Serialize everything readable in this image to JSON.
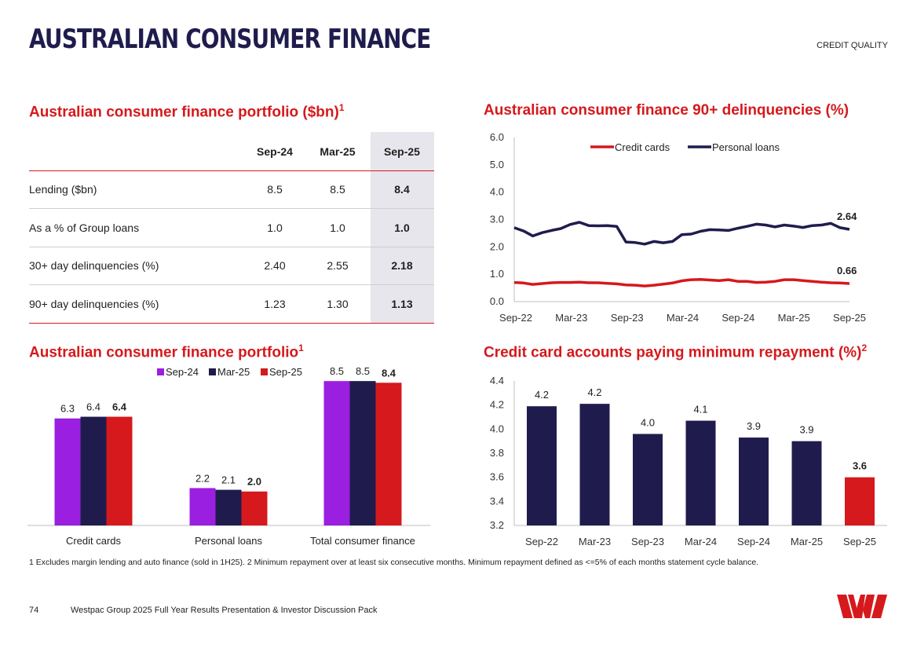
{
  "header": {
    "title": "AUSTRALIAN CONSUMER FINANCE",
    "section": "CREDIT QUALITY"
  },
  "portfolio_table": {
    "title": "Australian consumer finance portfolio ($bn)",
    "title_sup": "1",
    "columns": [
      "Sep-24",
      "Mar-25",
      "Sep-25"
    ],
    "rows": [
      {
        "label": "Lending ($bn)",
        "values": [
          "8.5",
          "8.5",
          "8.4"
        ]
      },
      {
        "label": "As a % of Group loans",
        "values": [
          "1.0",
          "1.0",
          "1.0"
        ]
      },
      {
        "label": "30+ day delinquencies (%)",
        "values": [
          "2.40",
          "2.55",
          "2.18"
        ]
      },
      {
        "label": "90+ day delinquencies (%)",
        "values": [
          "1.23",
          "1.30",
          "1.13"
        ]
      }
    ]
  },
  "chart_data": [
    {
      "id": "delinquencies",
      "type": "line",
      "title": "Australian consumer finance 90+ delinquencies (%)",
      "x_ticks": [
        "Sep-22",
        "Mar-23",
        "Sep-23",
        "Mar-24",
        "Sep-24",
        "Mar-25",
        "Sep-25"
      ],
      "ylim": [
        0,
        6
      ],
      "y_ticks": [
        "0.0",
        "1.0",
        "2.0",
        "3.0",
        "4.0",
        "5.0",
        "6.0"
      ],
      "series": [
        {
          "name": "Credit cards",
          "color": "#d5191c",
          "end_label": "0.66",
          "values": [
            0.7,
            0.68,
            0.63,
            0.66,
            0.69,
            0.7,
            0.7,
            0.71,
            0.69,
            0.69,
            0.67,
            0.65,
            0.61,
            0.6,
            0.57,
            0.6,
            0.64,
            0.68,
            0.76,
            0.8,
            0.81,
            0.79,
            0.77,
            0.8,
            0.74,
            0.74,
            0.7,
            0.71,
            0.74,
            0.8,
            0.8,
            0.77,
            0.74,
            0.71,
            0.69,
            0.68,
            0.66
          ]
        },
        {
          "name": "Personal loans",
          "color": "#1f1c4d",
          "end_label": "2.64",
          "values": [
            2.7,
            2.58,
            2.4,
            2.52,
            2.6,
            2.67,
            2.82,
            2.9,
            2.78,
            2.77,
            2.78,
            2.75,
            2.18,
            2.16,
            2.1,
            2.2,
            2.15,
            2.2,
            2.45,
            2.47,
            2.57,
            2.63,
            2.62,
            2.6,
            2.68,
            2.75,
            2.83,
            2.8,
            2.73,
            2.8,
            2.76,
            2.71,
            2.78,
            2.8,
            2.86,
            2.7,
            2.64
          ]
        }
      ]
    },
    {
      "id": "portfolio-bars",
      "type": "bar",
      "title": "Australian consumer finance portfolio",
      "title_sup": "1",
      "categories": [
        "Credit cards",
        "Personal loans",
        "Total consumer finance"
      ],
      "ylim": [
        0,
        9.2
      ],
      "series": [
        {
          "name": "Sep-24",
          "color": "#9b1fe0",
          "values": [
            6.3,
            2.2,
            8.5
          ],
          "labels": [
            "6.3",
            "2.2",
            "8.5"
          ]
        },
        {
          "name": "Mar-25",
          "color": "#1f1c4d",
          "values": [
            6.4,
            2.1,
            8.5
          ],
          "labels": [
            "6.4",
            "2.1",
            "8.5"
          ]
        },
        {
          "name": "Sep-25",
          "color": "#d5191c",
          "values": [
            6.4,
            2.0,
            8.4
          ],
          "labels": [
            "6.4",
            "2.0",
            "8.4"
          ]
        }
      ]
    },
    {
      "id": "min-repayment",
      "type": "bar",
      "title": "Credit card accounts paying minimum repayment (%)",
      "title_sup": "2",
      "categories": [
        "Sep-22",
        "Mar-23",
        "Sep-23",
        "Mar-24",
        "Sep-24",
        "Mar-25",
        "Sep-25"
      ],
      "ylim": [
        3.2,
        4.4
      ],
      "y_ticks": [
        "3.2",
        "3.4",
        "3.6",
        "3.8",
        "4.0",
        "4.2",
        "4.4"
      ],
      "values": [
        4.19,
        4.21,
        3.96,
        4.07,
        3.93,
        3.9,
        3.6
      ],
      "labels": [
        "4.2",
        "4.2",
        "4.0",
        "4.1",
        "3.9",
        "3.9",
        "3.6"
      ],
      "colors": [
        "#1f1c4d",
        "#1f1c4d",
        "#1f1c4d",
        "#1f1c4d",
        "#1f1c4d",
        "#1f1c4d",
        "#d5191c"
      ]
    }
  ],
  "footnote": "1 Excludes margin lending and auto finance (sold in 1H25). 2 Minimum repayment over at least six consecutive months. Minimum repayment defined as <=5% of each months statement cycle balance.",
  "footer": {
    "page_number": "74",
    "text": "Westpac Group 2025 Full Year Results Presentation & Investor Discussion Pack"
  },
  "logo": {
    "color": "#d5191c",
    "name": "westpac-logo"
  }
}
